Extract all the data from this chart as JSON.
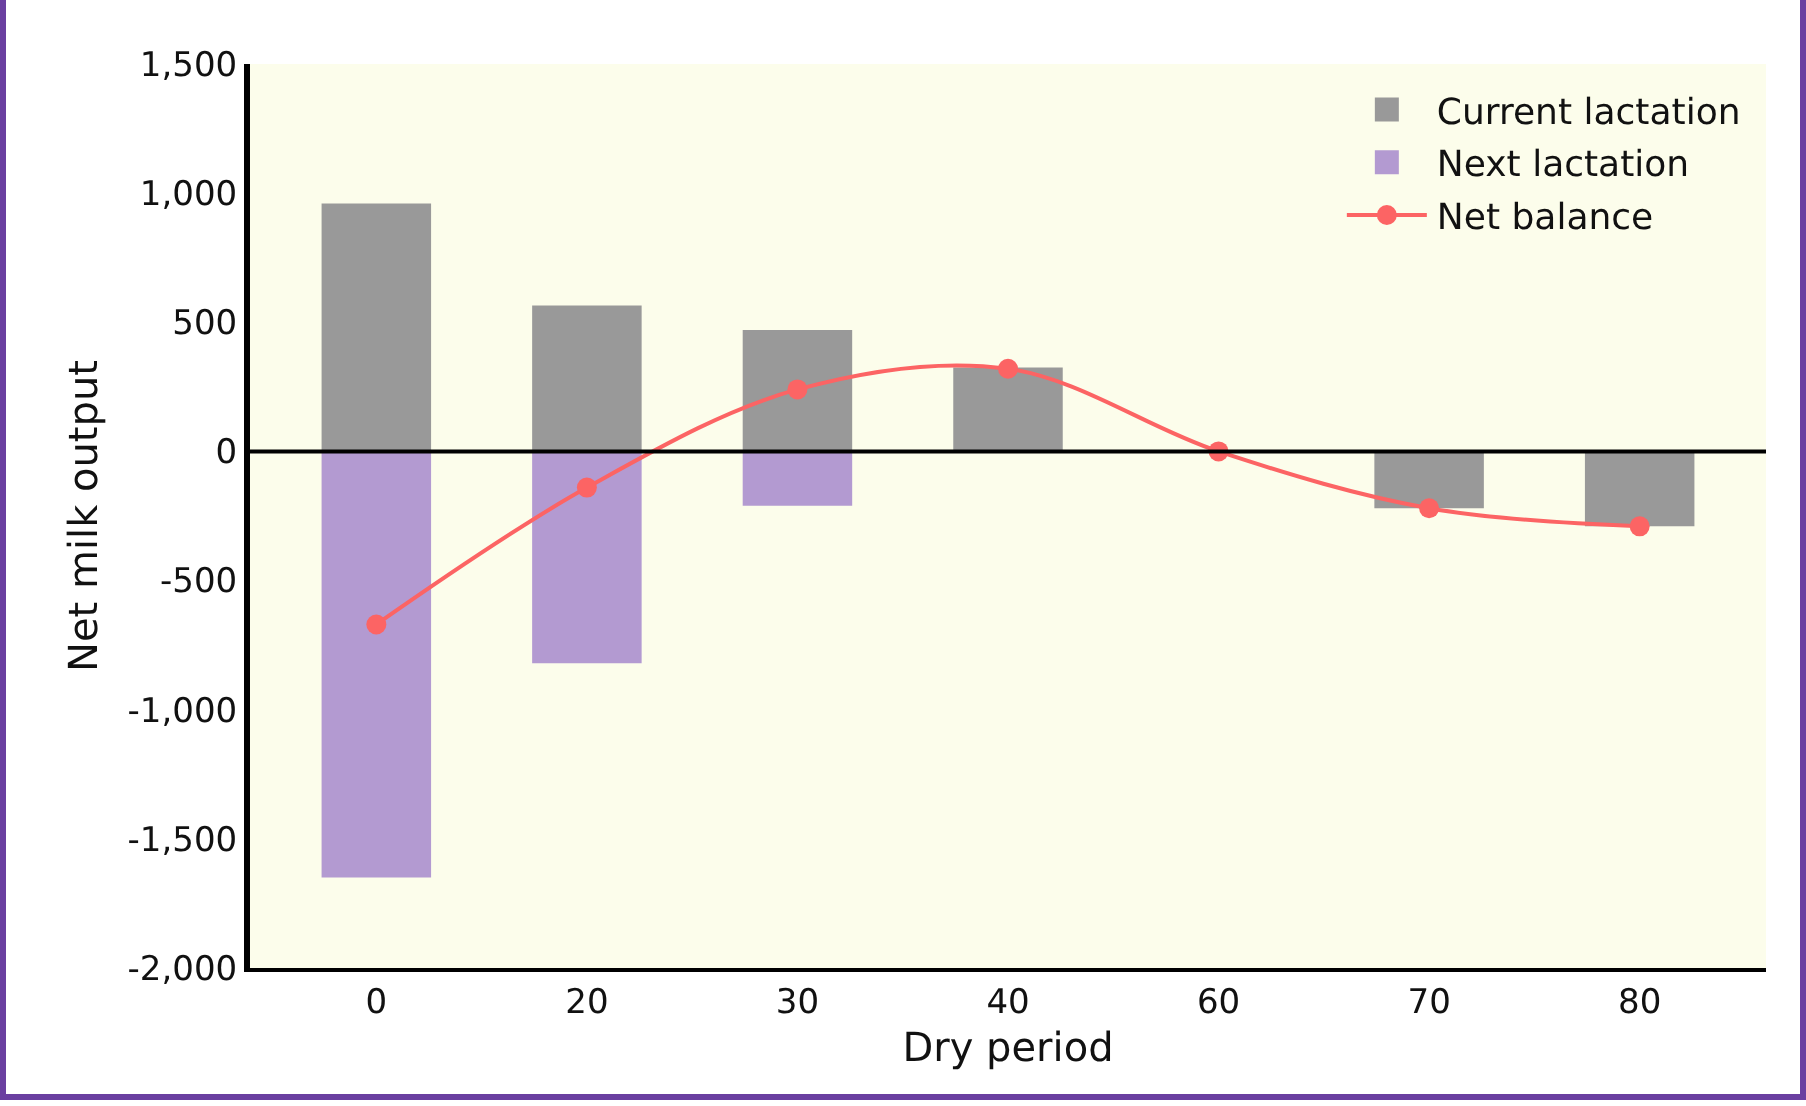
{
  "chart_data": {
    "type": "bar",
    "stacked": true,
    "xlabel": "Dry period",
    "ylabel": "Net milk output",
    "categories": [
      "0",
      "20",
      "30",
      "40",
      "60",
      "70",
      "80"
    ],
    "series": [
      {
        "name": "Current lactation",
        "color": "#999999",
        "values": [
          960,
          565,
          470,
          325,
          null,
          -220,
          -290
        ]
      },
      {
        "name": "Next lactation",
        "color": "#b39ad1",
        "values": [
          -1650,
          -820,
          -210,
          null,
          null,
          null,
          null
        ]
      },
      {
        "name": "Net balance",
        "type": "line",
        "color": "#fc6464",
        "marker": "circle",
        "values": [
          -670,
          -140,
          240,
          320,
          0,
          -220,
          -290
        ]
      }
    ],
    "ylim": [
      -2000,
      1500
    ],
    "yticks": [
      {
        "value": -2000,
        "label": "-2,000"
      },
      {
        "value": -1500,
        "label": "-1,500"
      },
      {
        "value": -1000,
        "label": "-1,000"
      },
      {
        "value": -500,
        "label": "-500"
      },
      0,
      500,
      {
        "value": 1000,
        "label": "1,000"
      },
      {
        "value": 1500,
        "label": "1,500"
      }
    ],
    "ref_lines": [
      {
        "axis": "y",
        "value": 0,
        "color": "#000000"
      }
    ],
    "grid": false,
    "legend": "top right"
  }
}
